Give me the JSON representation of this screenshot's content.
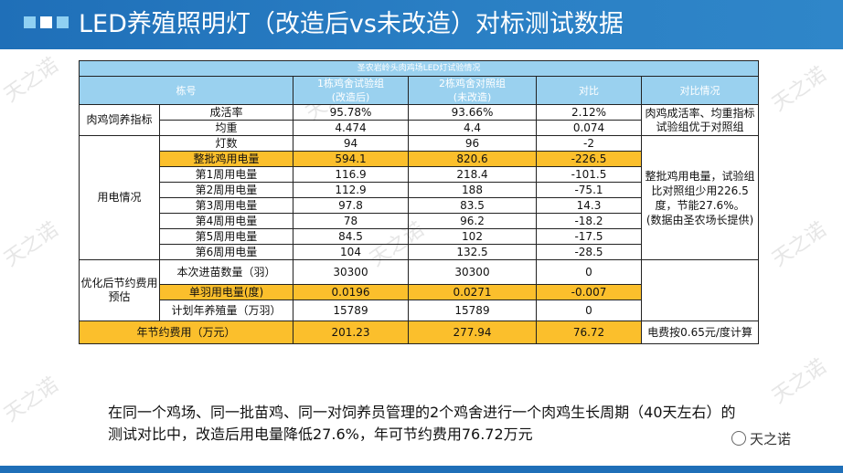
{
  "title": "LED养殖照明灯（改造后vs未改造）对标测试数据",
  "table": {
    "caption": "圣农岩岭头肉鸡场LED灯试验情况",
    "headers": [
      "栋号",
      "1栋鸡舍试验组\n(改造后)",
      "2栋鸡舍对照组\n(未改造)",
      "对比",
      "对比情况"
    ],
    "groups": [
      {
        "name": "肉鸡饲养指标",
        "note": "肉鸡成活率、均重指标试验组优于对照组",
        "rows": [
          [
            "成活率",
            "95.78%",
            "93.66%",
            "2.12%"
          ],
          [
            "均重",
            "4.474",
            "4.4",
            "0.074"
          ]
        ]
      },
      {
        "name": "用电情况",
        "note": "整批鸡用电量，试验组比对照组少用226.5度，节能27.6%。\n(数据由圣农场长提供)",
        "rows": [
          [
            "灯数",
            "94",
            "96",
            "-2"
          ],
          [
            "整批鸡用电量",
            "594.1",
            "820.6",
            "-226.5"
          ],
          [
            "第1周用电量",
            "116.9",
            "218.4",
            "-101.5"
          ],
          [
            "第2周用电量",
            "112.9",
            "188",
            "-75.1"
          ],
          [
            "第3周用电量",
            "97.8",
            "83.5",
            "14.3"
          ],
          [
            "第4周用电量",
            "78",
            "96.2",
            "-18.2"
          ],
          [
            "第5周用电量",
            "84.5",
            "102",
            "-17.5"
          ],
          [
            "第6周用电量",
            "104",
            "132.5",
            "-28.5"
          ]
        ]
      },
      {
        "name": "优化后节约费用预估",
        "note": "",
        "rows": [
          [
            "本次进苗数量（羽）",
            "30300",
            "30300",
            "0"
          ],
          [
            "单羽用电量(度)",
            "0.0196",
            "0.0271",
            "-0.007"
          ],
          [
            "计划年养殖量（万羽）",
            "15789",
            "15789",
            "0"
          ]
        ]
      }
    ],
    "footer_row": [
      "年节约费用（万元）",
      "201.23",
      "277.94",
      "76.72",
      "电费按0.65元/度计算"
    ]
  },
  "summary": "在同一个鸡场、同一批苗鸡、同一对饲养员管理的2个鸡舍进行一个肉鸡生长周期（40天左右）的测试对比中，改造后用电量降低27.6%，年可节约费用76.72万元",
  "logo_text": "天之诺",
  "watermark": "天之诺",
  "colors": {
    "title_bar": "#1f6fb8",
    "header_fill": "#9ad1ef",
    "highlight": "#fbbf2c"
  }
}
